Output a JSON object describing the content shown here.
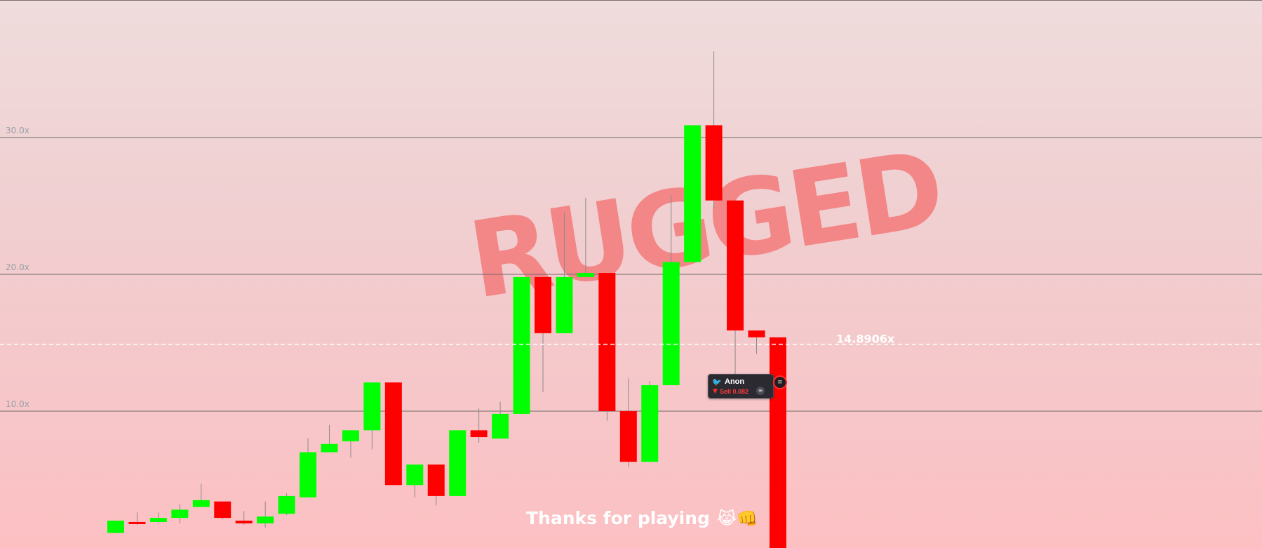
{
  "colors": {
    "up": "#00ff00",
    "down": "#ff0000",
    "wick": "#8a8a8a",
    "grid": "#6f6a6b",
    "axis_label": "#9aa0a8",
    "current_line": "#ffffff",
    "stamp": "#f47a7b"
  },
  "stamp": {
    "text": "RUGGED"
  },
  "footer": {
    "message": "Thanks for playing",
    "emoji": "😹👊"
  },
  "trade_marker": {
    "user": "Anon",
    "action": "Sell 0.082",
    "avatar_icon": "bird-icon",
    "arrow_icon": "down-arrow-icon",
    "coin_icon": "coin-icon",
    "marker_icon": "trade-pin-icon"
  },
  "chart_data": {
    "type": "candlestick",
    "y_axis": {
      "tick_values": [
        10,
        20,
        30
      ],
      "tick_labels": [
        "10.0x",
        "20.0x",
        "30.0x"
      ],
      "range": [
        0,
        40
      ]
    },
    "current_value": 14.8906,
    "current_label": "14.8906x",
    "candles": [
      {
        "open": 1.1,
        "close": 2.0,
        "high": 2.0,
        "low": 1.1
      },
      {
        "open": 1.9,
        "close": 1.8,
        "high": 2.6,
        "low": 1.7
      },
      {
        "open": 1.9,
        "close": 2.2,
        "high": 2.6,
        "low": 1.8
      },
      {
        "open": 2.2,
        "close": 2.8,
        "high": 3.2,
        "low": 1.8
      },
      {
        "open": 3.0,
        "close": 3.5,
        "high": 4.7,
        "low": 3.0
      },
      {
        "open": 3.4,
        "close": 2.2,
        "high": 3.4,
        "low": 2.1
      },
      {
        "open": 2.0,
        "close": 1.8,
        "high": 2.7,
        "low": 1.7
      },
      {
        "open": 1.8,
        "close": 2.3,
        "high": 3.4,
        "low": 1.5
      },
      {
        "open": 2.5,
        "close": 3.8,
        "high": 4.0,
        "low": 2.4
      },
      {
        "open": 3.7,
        "close": 7.0,
        "high": 8.0,
        "low": 3.7
      },
      {
        "open": 7.0,
        "close": 7.6,
        "high": 9.0,
        "low": 7.0
      },
      {
        "open": 7.8,
        "close": 8.6,
        "high": 8.6,
        "low": 6.6
      },
      {
        "open": 8.6,
        "close": 12.1,
        "high": 12.1,
        "low": 7.2
      },
      {
        "open": 12.1,
        "close": 4.6,
        "high": 12.1,
        "low": 4.6
      },
      {
        "open": 4.6,
        "close": 6.1,
        "high": 6.1,
        "low": 3.7
      },
      {
        "open": 6.1,
        "close": 3.8,
        "high": 6.1,
        "low": 3.1
      },
      {
        "open": 3.8,
        "close": 8.6,
        "high": 8.6,
        "low": 3.8
      },
      {
        "open": 8.6,
        "close": 8.1,
        "high": 10.2,
        "low": 7.7
      },
      {
        "open": 8.0,
        "close": 9.8,
        "high": 10.7,
        "low": 8.0
      },
      {
        "open": 9.8,
        "close": 19.8,
        "high": 19.8,
        "low": 9.8
      },
      {
        "open": 19.8,
        "close": 15.7,
        "high": 19.8,
        "low": 11.4
      },
      {
        "open": 15.7,
        "close": 19.8,
        "high": 24.5,
        "low": 15.7
      },
      {
        "open": 19.8,
        "close": 20.1,
        "high": 25.6,
        "low": 19.8
      },
      {
        "open": 20.1,
        "close": 10.0,
        "high": 20.1,
        "low": 9.3
      },
      {
        "open": 10.0,
        "close": 6.3,
        "high": 12.4,
        "low": 5.9
      },
      {
        "open": 6.3,
        "close": 11.9,
        "high": 12.2,
        "low": 6.3
      },
      {
        "open": 11.9,
        "close": 20.9,
        "high": 25.8,
        "low": 11.9
      },
      {
        "open": 20.9,
        "close": 30.9,
        "high": 30.9,
        "low": 20.9
      },
      {
        "open": 30.9,
        "close": 25.4,
        "high": 36.3,
        "low": 24.8
      },
      {
        "open": 25.4,
        "close": 15.9,
        "high": 25.4,
        "low": 11.3
      },
      {
        "open": 15.9,
        "close": 15.4,
        "high": 15.9,
        "low": 14.2
      },
      {
        "open": 15.4,
        "close": 0.0,
        "high": 15.4,
        "low": 0.0
      }
    ]
  }
}
